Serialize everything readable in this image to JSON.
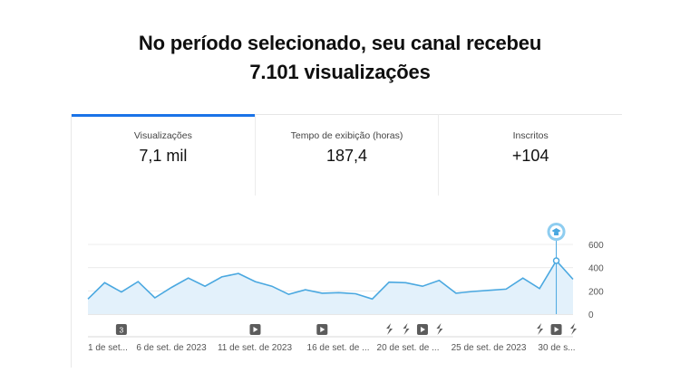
{
  "headline": {
    "line1": "No período selecionado, seu canal recebeu",
    "line2": "7.101 visualizações"
  },
  "tabs": [
    {
      "label": "Visualizações",
      "value": "7,1 mil",
      "active": true
    },
    {
      "label": "Tempo de exibição (horas)",
      "value": "187,4",
      "active": false
    },
    {
      "label": "Inscritos",
      "value": "+104",
      "active": false
    }
  ],
  "colors": {
    "accent": "#1a73e8",
    "line": "#4aa8e0",
    "area": "#e3f1fb",
    "marker": "#5c5c5c"
  },
  "chart_data": {
    "type": "area",
    "y_ticks": [
      "600",
      "400",
      "200",
      "0"
    ],
    "ylim": [
      0,
      600
    ],
    "x_tick_labels": [
      "1 de set...",
      "6 de set. de 2023",
      "11 de set. de 2023",
      "16 de set. de ...",
      "20 de set. de ...",
      "25 de set. de 2023",
      "30 de s..."
    ],
    "values": [
      130,
      270,
      190,
      280,
      140,
      230,
      310,
      240,
      320,
      350,
      280,
      240,
      170,
      210,
      180,
      185,
      175,
      130,
      275,
      270,
      240,
      290,
      180,
      195,
      205,
      215,
      310,
      220,
      460,
      300
    ],
    "milestone_index": 28,
    "markers": [
      {
        "index": 2,
        "type": "count",
        "label": "3"
      },
      {
        "index": 10,
        "type": "video"
      },
      {
        "index": 14,
        "type": "video"
      },
      {
        "index": 18,
        "type": "short"
      },
      {
        "index": 19,
        "type": "short"
      },
      {
        "index": 20,
        "type": "video"
      },
      {
        "index": 21,
        "type": "short"
      },
      {
        "index": 27,
        "type": "short"
      },
      {
        "index": 28,
        "type": "video"
      },
      {
        "index": 29,
        "type": "short"
      }
    ]
  }
}
